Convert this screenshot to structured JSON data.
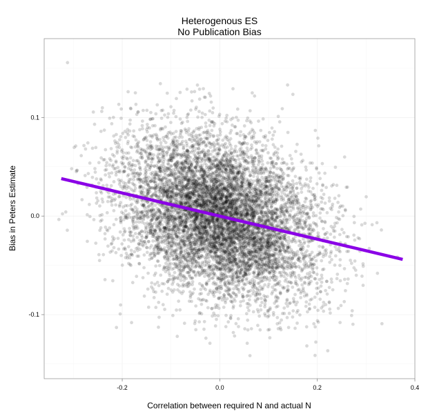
{
  "chart_data": {
    "type": "scatter",
    "title": [
      "Heterogenous ES",
      "No Publication Bias"
    ],
    "xlabel": "Correlation between required N and actual N",
    "ylabel": "Bias in Peters Estimate",
    "xlim": [
      -0.36,
      0.4
    ],
    "ylim": [
      -0.165,
      0.18
    ],
    "x_ticks": [
      -0.2,
      0.0,
      0.2,
      0.4
    ],
    "x_tick_labels": [
      "-0.2",
      "0.0",
      "0.2",
      "0.4"
    ],
    "y_ticks": [
      -0.1,
      0.0,
      0.1
    ],
    "y_tick_labels": [
      "-0.1",
      "0.0",
      "0.1"
    ],
    "grid": true,
    "points": {
      "count": 8000,
      "x_mean": 0.0,
      "x_sd": 0.1,
      "y_mean": 0.0,
      "y_sd": 0.04,
      "color": "#000000",
      "opacity": 0.15
    },
    "fit_line": {
      "x": [
        -0.325,
        0.375
      ],
      "y": [
        0.038,
        -0.044
      ],
      "color": "#8a00e6"
    }
  }
}
